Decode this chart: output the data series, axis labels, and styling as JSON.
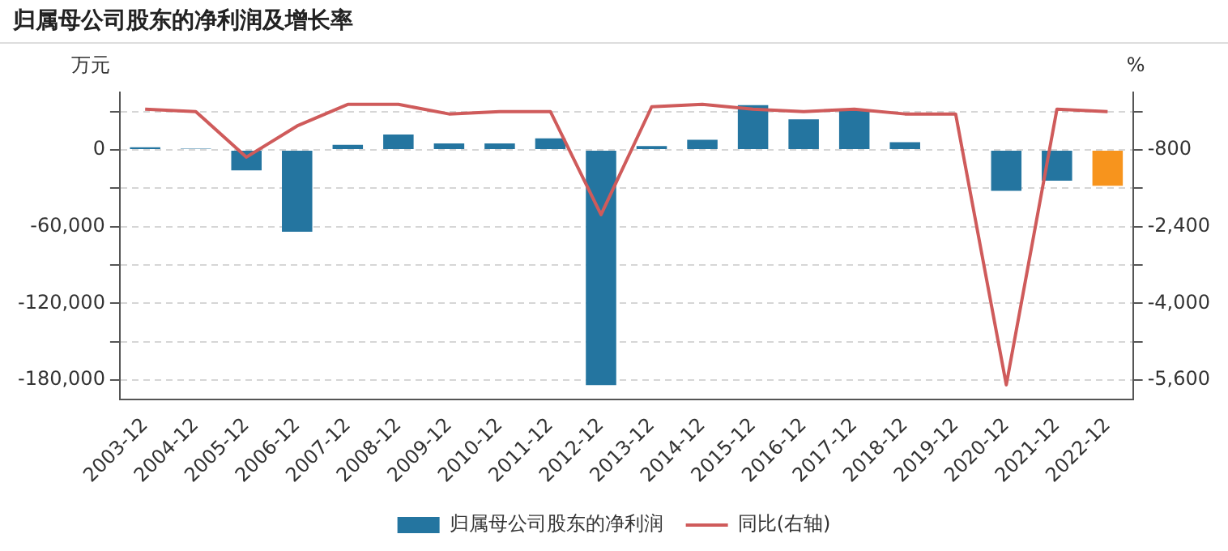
{
  "chart_data": {
    "type": "bar",
    "title": "归属母公司股东的净利润及增长率",
    "ylabel": "万元",
    "y2label": "%",
    "categories": [
      "2003-12",
      "2004-12",
      "2005-12",
      "2006-12",
      "2007-12",
      "2008-12",
      "2009-12",
      "2010-12",
      "2011-12",
      "2012-12",
      "2013-12",
      "2014-12",
      "2015-12",
      "2016-12",
      "2017-12",
      "2018-12",
      "2019-12",
      "2020-12",
      "2021-12",
      "2022-12"
    ],
    "series": [
      {
        "name": "归属母公司股东的净利润",
        "colors": [
          "#2475a0",
          "#2475a0",
          "#2475a0",
          "#2475a0",
          "#2475a0",
          "#2475a0",
          "#2475a0",
          "#2475a0",
          "#2475a0",
          "#2475a0",
          "#2475a0",
          "#2475a0",
          "#2475a0",
          "#2475a0",
          "#2475a0",
          "#2475a0",
          "#2475a0",
          "#2475a0",
          "#2475a0",
          "#f7941d"
        ],
        "values": [
          2000,
          1000,
          -16000,
          -64000,
          4000,
          12000,
          5000,
          5000,
          9000,
          -184000,
          3000,
          8000,
          35000,
          24000,
          31000,
          6000,
          0,
          -32000,
          -24000,
          -28000
        ]
      },
      {
        "name": "同比(右轴)",
        "type": "line",
        "axis": "y2",
        "color": "#cf5b5b",
        "values": [
          50,
          0,
          -950,
          -300,
          150,
          150,
          -50,
          0,
          0,
          -2150,
          100,
          150,
          50,
          0,
          50,
          -50,
          -50,
          -5700,
          50,
          0
        ]
      }
    ],
    "ylim": [
      -195000,
      45000
    ],
    "yticks": [
      {
        "value": 30000,
        "label": null
      },
      0,
      {
        "value": -30000,
        "label": null
      },
      {
        "value": -60000,
        "label": "-60,000"
      },
      {
        "value": -90000,
        "label": null
      },
      {
        "value": -120000,
        "label": "-120,000"
      },
      {
        "value": -150000,
        "label": null
      },
      {
        "value": -180000,
        "label": "-180,000"
      }
    ],
    "y2lim": [
      -6000,
      400
    ],
    "y2ticks": [
      {
        "value": 0,
        "label": null
      },
      -800,
      {
        "value": -1600,
        "label": null
      },
      {
        "value": -2400,
        "label": "-2,400"
      },
      {
        "value": -3200,
        "label": null
      },
      {
        "value": -4000,
        "label": "-4,000"
      },
      {
        "value": -4800,
        "label": null
      },
      {
        "value": -5600,
        "label": "-5,600"
      }
    ],
    "grid": "y",
    "legend": "bottom",
    "marker": "none",
    "line_style": "solid"
  }
}
